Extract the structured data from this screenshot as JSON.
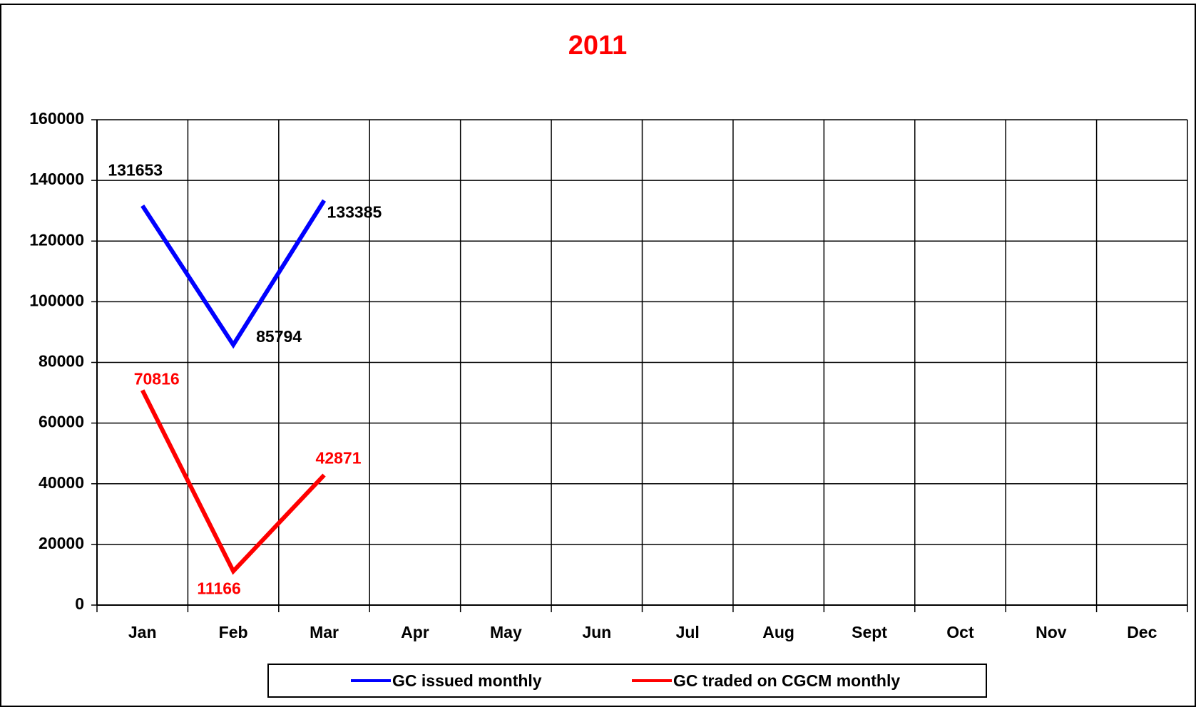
{
  "chart_data": {
    "type": "line",
    "title": "2011",
    "categories": [
      "Jan",
      "Feb",
      "Mar",
      "Apr",
      "May",
      "Jun",
      "Jul",
      "Aug",
      "Sept",
      "Oct",
      "Nov",
      "Dec"
    ],
    "series": [
      {
        "name": "GC issued monthly",
        "color": "#0000ff",
        "values": [
          131653,
          85794,
          133385,
          null,
          null,
          null,
          null,
          null,
          null,
          null,
          null,
          null
        ]
      },
      {
        "name": "GC traded on CGCM monthly",
        "color": "#ff0000",
        "values": [
          70816,
          11166,
          42871,
          null,
          null,
          null,
          null,
          null,
          null,
          null,
          null,
          null
        ]
      }
    ],
    "ylim": [
      0,
      160000
    ],
    "yticks": [
      0,
      20000,
      40000,
      60000,
      80000,
      100000,
      120000,
      140000,
      160000
    ],
    "grid": true,
    "legend": "bottom"
  }
}
